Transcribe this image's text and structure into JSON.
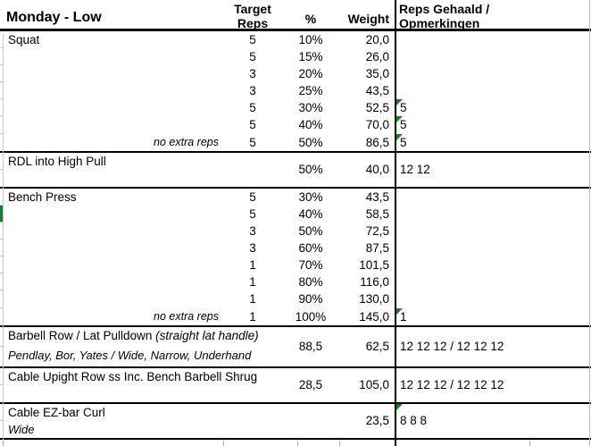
{
  "header": {
    "title": "Monday - Low",
    "target_line1": "Target",
    "target_line2": "Reps",
    "percent": "%",
    "weight": "Weight",
    "reps_line1": "Reps Gehaald /",
    "reps_line2": "Opmerkingen"
  },
  "colors": {
    "flag_green": "#1E7B1E",
    "cell_green": "#217346",
    "section_border": "#000000",
    "gridline_gray": "#C9C9C9"
  },
  "sections": [
    {
      "name": "Squat",
      "rows": [
        {
          "target": "5",
          "pct": "10%",
          "weight": "20,0",
          "result": "",
          "flag": false
        },
        {
          "target": "5",
          "pct": "15%",
          "weight": "26,0",
          "result": "",
          "flag": false
        },
        {
          "target": "3",
          "pct": "20%",
          "weight": "35,0",
          "result": "",
          "flag": false
        },
        {
          "target": "3",
          "pct": "25%",
          "weight": "43,5",
          "result": "",
          "flag": false
        },
        {
          "target": "5",
          "pct": "30%",
          "weight": "52,5",
          "result": "5",
          "flag": true
        },
        {
          "target": "5",
          "pct": "40%",
          "weight": "70,0",
          "result": "5",
          "flag": true
        },
        {
          "note": "no extra reps",
          "target": "5",
          "pct": "50%",
          "weight": "86,5",
          "result": "5",
          "flag": true
        }
      ]
    },
    {
      "name": "RDL into High Pull",
      "merged": {
        "pct": "50%",
        "weight": "40,0",
        "result": "12 12",
        "flag": false
      }
    },
    {
      "name": "Bench Press",
      "rows": [
        {
          "target": "5",
          "pct": "30%",
          "weight": "43,5",
          "result": "",
          "flag": false
        },
        {
          "target": "5",
          "pct": "40%",
          "weight": "58,5",
          "result": "",
          "flag": false,
          "green_left": true
        },
        {
          "target": "3",
          "pct": "50%",
          "weight": "72,5",
          "result": "",
          "flag": false
        },
        {
          "target": "3",
          "pct": "60%",
          "weight": "87,5",
          "result": "",
          "flag": false
        },
        {
          "target": "1",
          "pct": "70%",
          "weight": "101,5",
          "result": "",
          "flag": false
        },
        {
          "target": "1",
          "pct": "80%",
          "weight": "116,0",
          "result": "",
          "flag": false
        },
        {
          "target": "1",
          "pct": "90%",
          "weight": "130,0",
          "result": "",
          "flag": false
        },
        {
          "note": "no extra reps",
          "target": "1",
          "pct": "100%",
          "weight": "145,0",
          "result": "1",
          "flag": true
        }
      ]
    },
    {
      "name": "Barbell Row / Lat Pulldown",
      "name_suffix": "(straight lat handle)",
      "subtitle": "Pendlay, Bor, Yates / Wide, Narrow, Underhand",
      "merged": {
        "pct": "88,5",
        "weight": "62,5",
        "result": "12 12 12 / 12 12 12",
        "flag": false
      }
    },
    {
      "name": "Cable Upight Row ss Inc. Bench Barbell Shrug",
      "merged": {
        "pct": "28,5",
        "weight": "105,0",
        "result": "12 12 12 / 12 12 12",
        "flag": false
      }
    },
    {
      "name": "Cable EZ-bar Curl",
      "subtitle": "Wide",
      "merged": {
        "pct": "",
        "weight": "23,5",
        "result": "8 8 8",
        "flag": true
      }
    }
  ]
}
